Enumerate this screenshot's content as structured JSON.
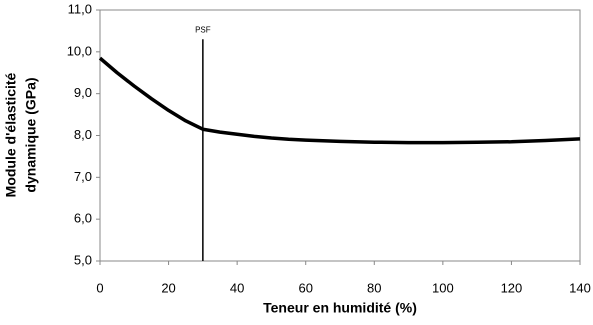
{
  "chart_data": {
    "type": "line",
    "x_label": "Teneur en humidité (%)",
    "y_label": [
      "Module d'élasticité",
      "dynamique (GPa)"
    ],
    "x": [
      0,
      5,
      10,
      15,
      20,
      25,
      30,
      35,
      40,
      45,
      50,
      55,
      60,
      70,
      80,
      90,
      100,
      110,
      120,
      130,
      140
    ],
    "series": [
      {
        "color": "#000000",
        "values": [
          9.85,
          9.5,
          9.18,
          8.88,
          8.6,
          8.35,
          8.15,
          8.08,
          8.03,
          7.98,
          7.94,
          7.91,
          7.89,
          7.86,
          7.84,
          7.83,
          7.83,
          7.84,
          7.85,
          7.88,
          7.92
        ]
      }
    ],
    "xlim": [
      0,
      140
    ],
    "xticks": [
      0,
      20,
      40,
      60,
      80,
      100,
      120,
      140
    ],
    "ylim": [
      5,
      11
    ],
    "yticks": [
      {
        "value": 5,
        "label": "5,0"
      },
      {
        "value": 6,
        "label": "6,0"
      },
      {
        "value": 7,
        "label": "7,0"
      },
      {
        "value": 8,
        "label": "8,0"
      },
      {
        "value": 9,
        "label": "9,0"
      },
      {
        "value": 10,
        "label": "10,0"
      },
      {
        "value": 11,
        "label": "11,0"
      }
    ],
    "grid": false,
    "annotations": [
      {
        "text": "PSF",
        "x": 30,
        "ymax": 10.3
      }
    ]
  }
}
